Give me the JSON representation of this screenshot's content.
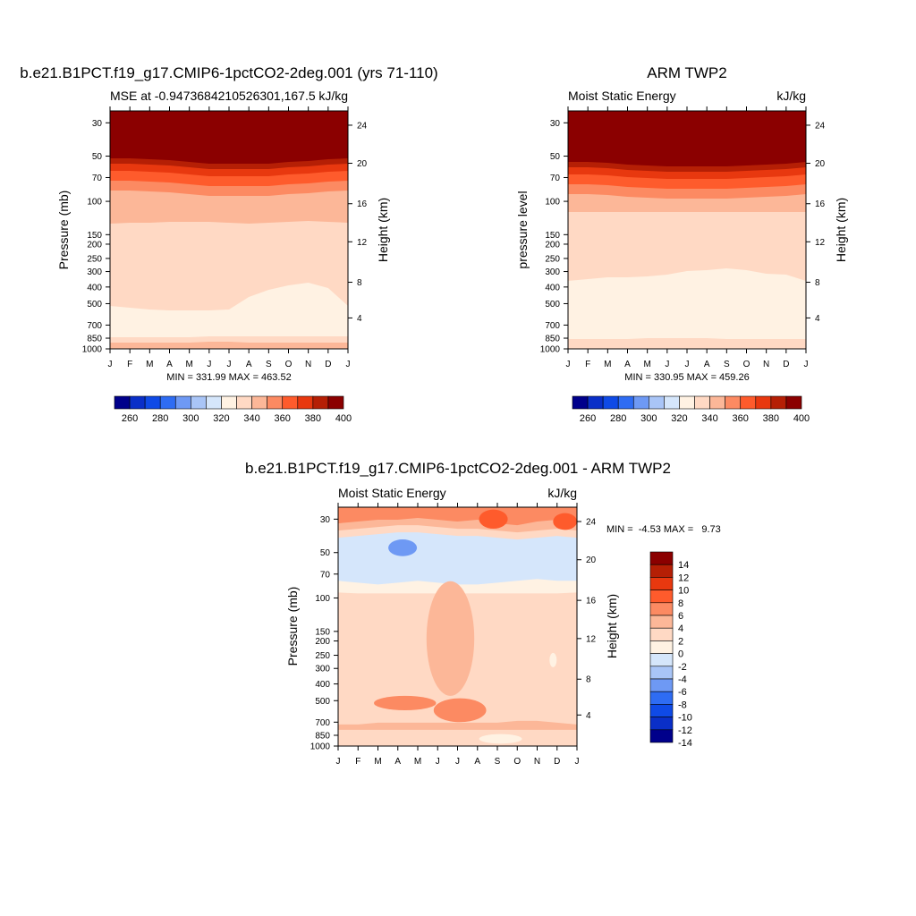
{
  "page": {
    "background": "#ffffff"
  },
  "chart_data": [
    {
      "type": "heatmap",
      "title": "b.e21.B1PCT.f19_g17.CMIP6-1pctCO2-2deg.001 (yrs 71-110)",
      "left_label": "MSE at -0.9473684210526301,167.5",
      "right_label": "kJ/kg",
      "ylabel": "Pressure (mb)",
      "ylabel_right": "Height (km)",
      "x_ticks": [
        "J",
        "F",
        "M",
        "A",
        "M",
        "J",
        "J",
        "A",
        "S",
        "O",
        "N",
        "D",
        "J"
      ],
      "y_ticks": [
        "30",
        "50",
        "70",
        "100",
        "150",
        "200",
        "250",
        "300",
        "400",
        "500",
        "700",
        "850",
        "1000"
      ],
      "y_right_ticks": [
        "24",
        "20",
        "16",
        "12",
        "8",
        "4"
      ],
      "stats": "MIN = 331.99 MAX = 463.52",
      "legend": {
        "labels": [
          "260",
          "280",
          "300",
          "320",
          "340",
          "360",
          "380",
          "400"
        ],
        "colors": [
          "#00008b",
          "#0a2fc8",
          "#0f4ae6",
          "#2e6cf3",
          "#6e99f4",
          "#a9c5f7",
          "#d5e6fb",
          "#fff2e3",
          "#ffd9c4",
          "#fcb798",
          "#fc8a62",
          "#fe5b2c",
          "#e8380f",
          "#b51f05",
          "#8b0000"
        ]
      },
      "bands": [
        {
          "top": [
            0,
            0,
            0,
            0,
            0,
            0,
            0,
            0,
            0,
            0,
            0,
            0,
            0
          ],
          "color": "#8b0000"
        },
        {
          "top": [
            53,
            53,
            54,
            55,
            57,
            59,
            59,
            59,
            59,
            57,
            56,
            54,
            53
          ],
          "color": "#b51f05"
        },
        {
          "top": [
            59,
            59,
            60,
            61,
            63,
            65,
            65,
            65,
            65,
            63,
            62,
            60,
            59
          ],
          "color": "#e8380f"
        },
        {
          "top": [
            67,
            67,
            68,
            69,
            71,
            73,
            73,
            73,
            73,
            71,
            70,
            68,
            67
          ],
          "color": "#fe5b2c"
        },
        {
          "top": [
            78,
            78,
            79,
            80,
            82,
            84,
            84,
            84,
            84,
            82,
            81,
            79,
            78
          ],
          "color": "#fc8a62"
        },
        {
          "top": [
            89,
            89,
            90,
            91,
            93,
            95,
            95,
            95,
            95,
            93,
            92,
            90,
            89
          ],
          "color": "#fcb798"
        },
        {
          "top": [
            126,
            125,
            125,
            124,
            124,
            124,
            125,
            126,
            125,
            124,
            123,
            124,
            125
          ],
          "color": "#ffd9c4"
        },
        {
          "top": [
            218,
            220,
            222,
            223,
            223,
            223,
            222,
            208,
            200,
            195,
            192,
            198,
            218
          ],
          "color": "#fff2e3"
        },
        {
          "top": [
            253,
            253,
            253,
            253,
            253,
            252,
            252,
            252,
            252,
            252,
            252,
            252,
            252
          ],
          "color": "#ffd9c4"
        },
        {
          "top": [
            259,
            259,
            259,
            259,
            259,
            258,
            258,
            259,
            259,
            259,
            259,
            259,
            259
          ],
          "color": "#fcb798"
        }
      ]
    },
    {
      "type": "heatmap",
      "title": "ARM TWP2",
      "left_label": "Moist Static Energy",
      "right_label": "kJ/kg",
      "ylabel": "pressure level",
      "ylabel_right": "Height (km)",
      "x_ticks": [
        "J",
        "F",
        "M",
        "A",
        "M",
        "J",
        "J",
        "A",
        "S",
        "O",
        "N",
        "D",
        "J"
      ],
      "y_ticks": [
        "30",
        "50",
        "70",
        "100",
        "150",
        "200",
        "250",
        "300",
        "400",
        "500",
        "700",
        "850",
        "1000"
      ],
      "y_right_ticks": [
        "24",
        "20",
        "16",
        "12",
        "8",
        "4"
      ],
      "stats": "MIN = 330.95 MAX = 459.26",
      "legend": {
        "labels": [
          "260",
          "280",
          "300",
          "320",
          "340",
          "360",
          "380",
          "400"
        ],
        "colors": [
          "#00008b",
          "#0a2fc8",
          "#0f4ae6",
          "#2e6cf3",
          "#6e99f4",
          "#a9c5f7",
          "#d5e6fb",
          "#fff2e3",
          "#ffd9c4",
          "#fcb798",
          "#fc8a62",
          "#fe5b2c",
          "#e8380f",
          "#b51f05",
          "#8b0000"
        ]
      },
      "bands": [
        {
          "top": [
            0,
            0,
            0,
            0,
            0,
            0,
            0,
            0,
            0,
            0,
            0,
            0,
            0
          ],
          "color": "#8b0000"
        },
        {
          "top": [
            57,
            57,
            58,
            60,
            61,
            62,
            62,
            62,
            62,
            61,
            60,
            59,
            57
          ],
          "color": "#b51f05"
        },
        {
          "top": [
            63,
            63,
            64,
            66,
            67,
            68,
            68,
            68,
            68,
            67,
            66,
            65,
            63
          ],
          "color": "#e8380f"
        },
        {
          "top": [
            71,
            71,
            72,
            74,
            75,
            76,
            76,
            76,
            76,
            75,
            74,
            73,
            71
          ],
          "color": "#fe5b2c"
        },
        {
          "top": [
            82,
            82,
            83,
            85,
            86,
            87,
            87,
            87,
            87,
            86,
            85,
            84,
            82
          ],
          "color": "#fc8a62"
        },
        {
          "top": [
            93,
            93,
            94,
            96,
            97,
            98,
            98,
            98,
            98,
            97,
            96,
            95,
            93
          ],
          "color": "#fcb798"
        },
        {
          "top": [
            113,
            113,
            113,
            113,
            113,
            113,
            113,
            113,
            113,
            113,
            113,
            113,
            113
          ],
          "color": "#ffd9c4"
        },
        {
          "top": [
            190,
            188,
            186,
            186,
            185,
            183,
            179,
            178,
            176,
            178,
            182,
            183,
            190
          ],
          "color": "#fff2e3"
        },
        {
          "top": [
            255,
            255,
            255,
            255,
            254,
            254,
            254,
            254,
            255,
            255,
            255,
            255,
            255
          ],
          "color": "#ffd9c4"
        }
      ]
    },
    {
      "type": "heatmap",
      "title": "b.e21.B1PCT.f19_g17.CMIP6-1pctCO2-2deg.001 - ARM TWP2",
      "left_label": "Moist Static Energy",
      "right_label": "kJ/kg",
      "ylabel": "Pressure (mb)",
      "ylabel_right": "Height (km)",
      "x_ticks": [
        "J",
        "F",
        "M",
        "A",
        "M",
        "J",
        "J",
        "A",
        "S",
        "O",
        "N",
        "D",
        "J"
      ],
      "y_ticks": [
        "30",
        "50",
        "70",
        "100",
        "150",
        "200",
        "250",
        "300",
        "400",
        "500",
        "700",
        "850",
        "1000"
      ],
      "y_right_ticks": [
        "24",
        "20",
        "16",
        "12",
        "8",
        "4"
      ],
      "stats": "MIN =  -4.53 MAX =   9.73",
      "legend": {
        "labels": [
          "14",
          "12",
          "10",
          "8",
          "6",
          "4",
          "2",
          "0",
          "-2",
          "-4",
          "-6",
          "-8",
          "-10",
          "-12",
          "-14"
        ],
        "colors": [
          "#8b0000",
          "#b51f05",
          "#e8380f",
          "#fe5b2c",
          "#fc8a62",
          "#fcb798",
          "#ffd9c4",
          "#fff2e3",
          "#d5e6fb",
          "#a9c5f7",
          "#6e99f4",
          "#2e6cf3",
          "#0f4ae6",
          "#0a2fc8",
          "#00008b"
        ]
      },
      "bands": [
        {
          "top": [
            0,
            0,
            0,
            0,
            0,
            0,
            0,
            0,
            0,
            0,
            0,
            0,
            0
          ],
          "color": "#fc8a62"
        },
        {
          "top": [
            18,
            16,
            14,
            14,
            12,
            14,
            16,
            14,
            18,
            20,
            16,
            14,
            18
          ],
          "color": "#fcb798"
        },
        {
          "top": [
            26,
            24,
            22,
            20,
            20,
            22,
            24,
            24,
            26,
            28,
            26,
            24,
            26
          ],
          "color": "#ffd9c4"
        },
        {
          "top": [
            34,
            32,
            30,
            28,
            28,
            30,
            32,
            32,
            34,
            36,
            34,
            32,
            34
          ],
          "color": "#d5e6fb"
        },
        {
          "top": [
            82,
            84,
            86,
            84,
            82,
            84,
            86,
            86,
            84,
            82,
            80,
            82,
            82
          ],
          "color": "#fff2e3"
        },
        {
          "top": [
            95,
            96,
            96,
            96,
            96,
            96,
            96,
            96,
            96,
            96,
            96,
            96,
            95
          ],
          "color": "#ffd9c4"
        },
        {
          "top": [
            242,
            242,
            240,
            240,
            240,
            240,
            240,
            240,
            240,
            238,
            238,
            240,
            242
          ],
          "color": "#fcb798"
        },
        {
          "top": [
            248,
            248,
            248,
            248,
            248,
            248,
            248,
            248,
            248,
            248,
            248,
            248,
            248
          ],
          "color": "#ffd9c4"
        }
      ],
      "blobs": [
        {
          "cx": 0.27,
          "cy": 0.17,
          "rx": 0.06,
          "ry": 0.035,
          "color": "#6e99f4"
        },
        {
          "cx": 0.47,
          "cy": 0.55,
          "rx": 0.1,
          "ry": 0.24,
          "color": "#fcb798"
        },
        {
          "cx": 0.28,
          "cy": 0.82,
          "rx": 0.13,
          "ry": 0.03,
          "color": "#fc8a62"
        },
        {
          "cx": 0.51,
          "cy": 0.85,
          "rx": 0.11,
          "ry": 0.05,
          "color": "#fc8a62"
        },
        {
          "cx": 0.68,
          "cy": 0.97,
          "rx": 0.09,
          "ry": 0.02,
          "color": "#fff2e3"
        },
        {
          "cx": 0.9,
          "cy": 0.64,
          "rx": 0.015,
          "ry": 0.03,
          "color": "#fff2e3"
        },
        {
          "cx": 0.65,
          "cy": 0.05,
          "rx": 0.06,
          "ry": 0.04,
          "color": "#fe5b2c"
        },
        {
          "cx": 0.95,
          "cy": 0.06,
          "rx": 0.05,
          "ry": 0.035,
          "color": "#fe5b2c"
        }
      ]
    }
  ]
}
